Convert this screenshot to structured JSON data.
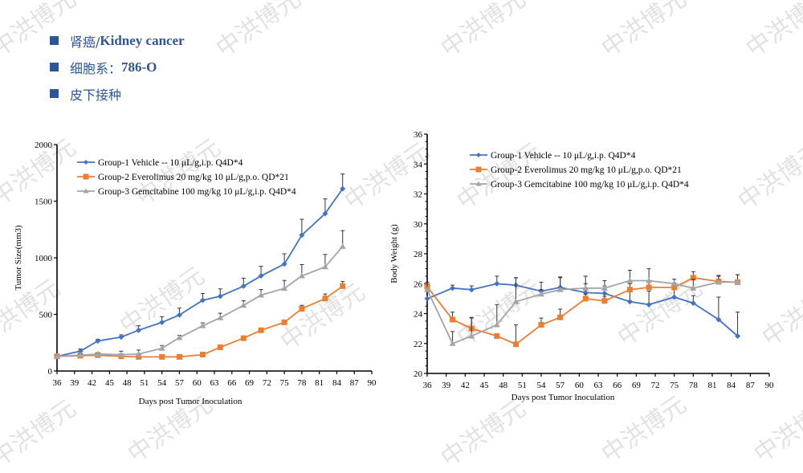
{
  "header": {
    "items": [
      {
        "cn": "肾癌/",
        "en": "Kidney cancer"
      },
      {
        "cn": "细胞系：",
        "en": "786-O"
      },
      {
        "cn": "皮下接种",
        "en": ""
      }
    ]
  },
  "watermark": "中洪博元",
  "colors": {
    "group1": "#4472c4",
    "group2": "#ed7d31",
    "group3": "#a5a5a5",
    "header": "#2f5597"
  },
  "chart_data": [
    {
      "type": "line",
      "title": "",
      "xlabel": "Days post Tumor Inoculation",
      "ylabel": "Tumor Size(mm3)",
      "xlim": [
        36,
        90
      ],
      "ylim": [
        0,
        2000
      ],
      "xticks": [
        36,
        39,
        42,
        45,
        48,
        51,
        54,
        57,
        60,
        63,
        66,
        69,
        72,
        75,
        78,
        81,
        84,
        87,
        90
      ],
      "yticks": [
        0,
        500,
        1000,
        1500,
        2000
      ],
      "legend": "top-left",
      "x": [
        36,
        40,
        43,
        47,
        50,
        54,
        57,
        61,
        64,
        68,
        71,
        75,
        78,
        82,
        85
      ],
      "series": [
        {
          "name": "Group-1 Vehicle -- 10 μL/g,i.p. Q4D*4",
          "marker": "diamond",
          "values": [
            130,
            175,
            265,
            300,
            360,
            430,
            495,
            625,
            660,
            750,
            840,
            945,
            1200,
            1390,
            1610
          ],
          "errors": [
            10,
            20,
            15,
            20,
            40,
            50,
            60,
            60,
            65,
            70,
            85,
            90,
            140,
            130,
            130
          ]
        },
        {
          "name": "Group-2 Everolimus 20 mg/kg 10 μL/g,p.o. QD*21",
          "marker": "square",
          "values": [
            130,
            135,
            140,
            130,
            125,
            125,
            125,
            145,
            210,
            290,
            360,
            430,
            550,
            640,
            750
          ],
          "errors": [
            5,
            5,
            5,
            5,
            5,
            5,
            5,
            5,
            10,
            15,
            10,
            15,
            30,
            40,
            40
          ]
        },
        {
          "name": "Group-3 Gemcitabine 100 mg/kg 10 μL/g,i.p. Q4D*4",
          "marker": "triangle",
          "values": [
            130,
            140,
            150,
            145,
            150,
            200,
            295,
            400,
            470,
            580,
            670,
            730,
            840,
            920,
            1100
          ],
          "errors": [
            5,
            10,
            10,
            30,
            35,
            25,
            20,
            25,
            40,
            40,
            50,
            70,
            100,
            110,
            140
          ]
        }
      ]
    },
    {
      "type": "line",
      "title": "",
      "xlabel": "Days post Tumor Inoculation",
      "ylabel": "Body Weight (g)",
      "xlim": [
        36,
        90
      ],
      "ylim": [
        20,
        36
      ],
      "xticks": [
        36,
        39,
        42,
        45,
        48,
        51,
        54,
        57,
        60,
        63,
        66,
        69,
        72,
        75,
        78,
        81,
        84,
        87,
        90
      ],
      "yticks": [
        20,
        22,
        24,
        26,
        28,
        30,
        32,
        34,
        36
      ],
      "legend": "top-left",
      "x": [
        36,
        40,
        43,
        47,
        50,
        54,
        57,
        61,
        64,
        68,
        71,
        75,
        78,
        82,
        85
      ],
      "series": [
        {
          "name": "Group-1 Vehicle -- 10 μL/g,i.p. Q4D*4",
          "marker": "diamond",
          "values": [
            25.0,
            25.7,
            25.6,
            26.0,
            25.9,
            25.5,
            25.75,
            25.4,
            25.35,
            24.8,
            24.6,
            25.1,
            24.7,
            23.6,
            22.5
          ],
          "errors": [
            0.0,
            0.2,
            0.25,
            0.5,
            0.5,
            0.6,
            0.7,
            0.6,
            0.5,
            0.9,
            0.9,
            0.5,
            0.5,
            1.5,
            1.6
          ]
        },
        {
          "name": "Group-2 Everolimus 20 mg/kg 10 μL/g,p.o. QD*21",
          "marker": "square",
          "values": [
            25.8,
            23.6,
            23.0,
            22.5,
            21.95,
            23.25,
            23.75,
            25.0,
            24.85,
            25.6,
            25.75,
            25.75,
            26.4,
            26.15,
            26.1
          ],
          "errors": [
            0.2,
            0.5,
            0.75,
            0.0,
            1.3,
            0.45,
            0.55,
            0.3,
            0.3,
            0.4,
            0.4,
            0.3,
            0.4,
            0.4,
            0.5
          ]
        },
        {
          "name": "Group-3 Gemcitabine 100 mg/kg 10 μL/g,i.p. Q4D*4",
          "marker": "triangle",
          "values": [
            25.6,
            22.0,
            22.5,
            23.25,
            24.8,
            25.3,
            25.6,
            25.7,
            25.7,
            26.2,
            26.2,
            26.0,
            25.7,
            26.1,
            26.1
          ],
          "errors": [
            0.5,
            0.8,
            1.2,
            1.35,
            1.6,
            0.3,
            0.8,
            0.8,
            0.5,
            0.7,
            0.8,
            0.3,
            0.6,
            0.4,
            0.5
          ]
        }
      ]
    }
  ]
}
